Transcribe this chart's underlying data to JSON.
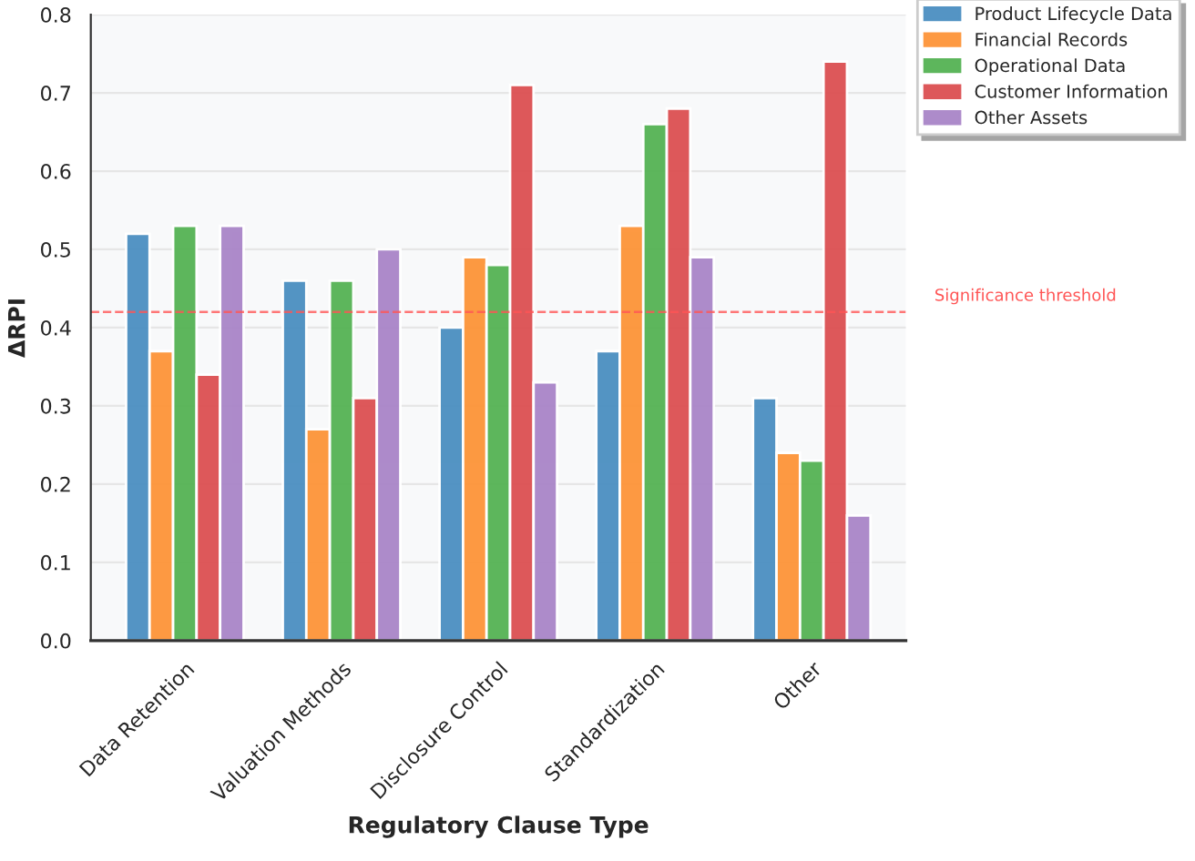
{
  "chart_data": {
    "type": "bar",
    "xlabel": "Regulatory Clause Type",
    "ylabel": "ΔRPI",
    "categories": [
      "Data Retention",
      "Valuation Methods",
      "Disclosure Control",
      "Standardization",
      "Other"
    ],
    "series": [
      {
        "name": "Product Lifecycle Data",
        "color": "#4b8fc1",
        "values": [
          0.52,
          0.46,
          0.4,
          0.37,
          0.31
        ]
      },
      {
        "name": "Financial Records",
        "color": "#fd9438",
        "values": [
          0.37,
          0.27,
          0.49,
          0.53,
          0.24
        ]
      },
      {
        "name": "Operational Data",
        "color": "#55b354",
        "values": [
          0.53,
          0.46,
          0.48,
          0.66,
          0.23
        ]
      },
      {
        "name": "Customer Information",
        "color": "#dc5052",
        "values": [
          0.34,
          0.31,
          0.71,
          0.68,
          0.74
        ]
      },
      {
        "name": "Other Assets",
        "color": "#a985c8",
        "values": [
          0.53,
          0.5,
          0.33,
          0.49,
          0.16
        ]
      }
    ],
    "ylim": [
      0,
      0.8
    ],
    "yticks": [
      {
        "value": 0,
        "label": "0.0"
      },
      0.1,
      0.2,
      0.3,
      0.4,
      0.5,
      0.6,
      0.7,
      0.8
    ],
    "ref_lines": [
      {
        "axis": "y",
        "value": 0.42,
        "label": "Significance threshold",
        "color": "#ff5555",
        "line_style": "dashed"
      }
    ],
    "grid": "y",
    "legend": "right"
  }
}
